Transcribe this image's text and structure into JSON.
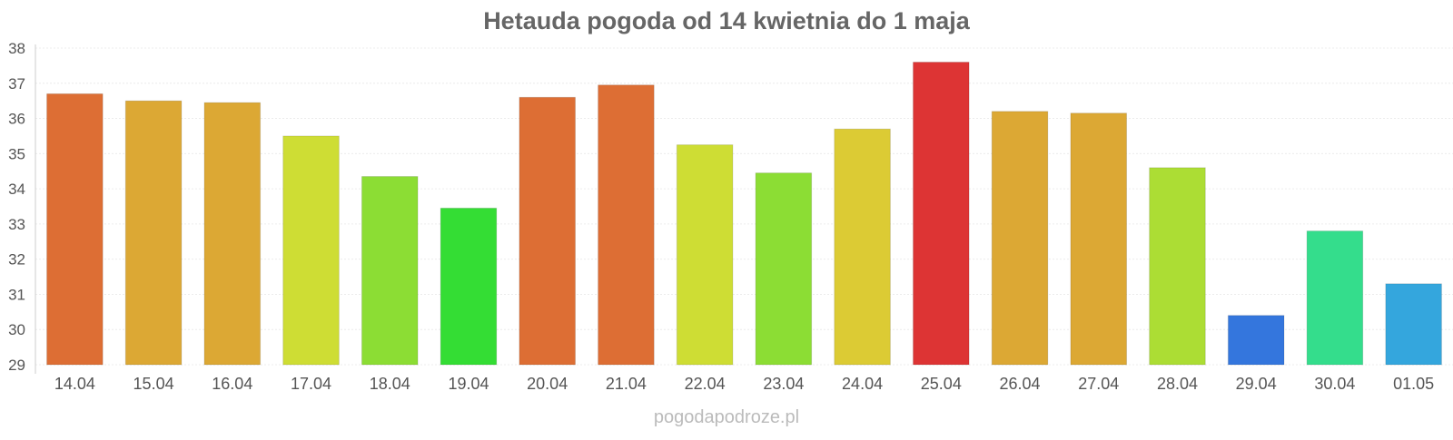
{
  "watermark": "pogodapodroze.pl",
  "chart_data": {
    "type": "bar",
    "title": "Hetauda pogoda od 14 kwietnia do 1 maja",
    "xlabel": "",
    "ylabel": "",
    "ylim": [
      29,
      38
    ],
    "yticks": [
      "29",
      "30",
      "31",
      "32",
      "33",
      "34",
      "35",
      "36",
      "37",
      "38"
    ],
    "grid": true,
    "categories": [
      "14.04",
      "15.04",
      "16.04",
      "17.04",
      "18.04",
      "19.04",
      "20.04",
      "21.04",
      "22.04",
      "23.04",
      "24.04",
      "25.04",
      "26.04",
      "27.04",
      "28.04",
      "29.04",
      "30.04",
      "01.05"
    ],
    "values": [
      36.7,
      36.5,
      36.45,
      35.5,
      34.35,
      33.45,
      36.6,
      36.95,
      35.25,
      34.45,
      35.7,
      37.6,
      36.2,
      36.15,
      34.6,
      30.4,
      32.8,
      31.3
    ],
    "colors": [
      "#dd6e34",
      "#dca834",
      "#dca834",
      "#cedd34",
      "#8cdd34",
      "#34dd34",
      "#dd6e34",
      "#dd6e34",
      "#cedd34",
      "#8cdd34",
      "#dccb34",
      "#dd3434",
      "#dca834",
      "#dca834",
      "#acdd34",
      "#3476dd",
      "#34dd8c",
      "#34a6dd"
    ]
  }
}
